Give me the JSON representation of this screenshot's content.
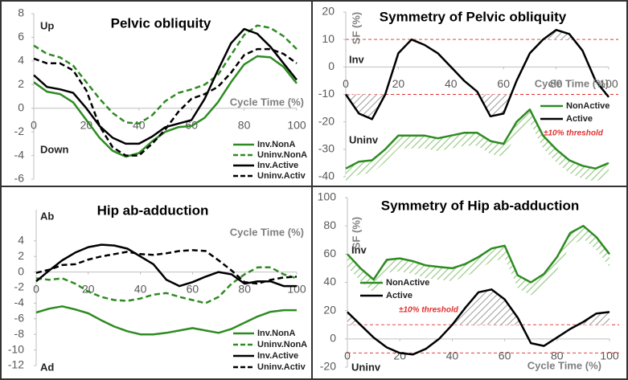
{
  "chart_data": [
    {
      "type": "line",
      "title": "Pelvic obliquity",
      "annotations": [
        "Up",
        "Down"
      ],
      "x_label": "Cycle Time (%)",
      "x": [
        0,
        5,
        10,
        15,
        20,
        25,
        30,
        35,
        40,
        45,
        50,
        55,
        60,
        65,
        70,
        75,
        80,
        85,
        90,
        95,
        100
      ],
      "xlim": [
        0,
        100
      ],
      "xticks": [
        0,
        20,
        40,
        60,
        80,
        100
      ],
      "ylim": [
        -6,
        8
      ],
      "yticks": [
        -6,
        -4,
        -2,
        0,
        2,
        4,
        6,
        8
      ],
      "series": [
        {
          "name": "Inv.NonA",
          "color": "#2e8b22",
          "dash": false,
          "values": [
            2.2,
            1.4,
            1.2,
            0.5,
            -1,
            -2.5,
            -3.6,
            -4.1,
            -3.8,
            -2.8,
            -2,
            -1.6,
            -1.5,
            -0.8,
            0.5,
            2.2,
            3.7,
            4.4,
            4.3,
            3.5,
            2.1
          ]
        },
        {
          "name": "Uninv.NonA",
          "color": "#2e8b22",
          "dash": true,
          "values": [
            5.3,
            4.6,
            4.3,
            3.6,
            2.2,
            0.8,
            -0.4,
            -1.2,
            -1.3,
            -0.6,
            0.6,
            1.3,
            1.6,
            2,
            2.8,
            4.5,
            6.2,
            7,
            6.8,
            6.1,
            5
          ]
        },
        {
          "name": "Inv.Active",
          "color": "#000000",
          "dash": false,
          "values": [
            2.8,
            1.8,
            1.6,
            1.3,
            0,
            -1.5,
            -2.5,
            -3,
            -3,
            -2.4,
            -1.6,
            -1.3,
            -1,
            0.8,
            3.2,
            5.5,
            6.7,
            6.3,
            5.2,
            3.8,
            2.4
          ]
        },
        {
          "name": "Uninv.Activ",
          "color": "#000000",
          "dash": true,
          "values": [
            4.2,
            3.8,
            3.8,
            3.2,
            1.5,
            -1.5,
            -3.3,
            -4,
            -4,
            -3,
            -1.8,
            -0.3,
            0.8,
            1.2,
            1.8,
            3,
            4.5,
            5,
            5,
            4.6,
            3.8
          ]
        }
      ]
    },
    {
      "type": "line",
      "title": "Symmetry of Pelvic obliquity",
      "annotations": [
        "Inv",
        "Uninv"
      ],
      "x_label": "Cycle Time (%)",
      "y_label": "SF (%)",
      "x": [
        0,
        5,
        10,
        15,
        20,
        25,
        30,
        35,
        40,
        45,
        50,
        55,
        60,
        65,
        70,
        75,
        80,
        85,
        90,
        95,
        100
      ],
      "xlim": [
        0,
        100
      ],
      "xticks": [
        0,
        20,
        40,
        60,
        80,
        100
      ],
      "ylim": [
        -40,
        20
      ],
      "yticks": [
        -40,
        -30,
        -20,
        -10,
        0,
        10,
        20
      ],
      "threshold": [
        10,
        -10
      ],
      "threshold_label": "±10% threshold",
      "threshold_color": "#e03030",
      "series": [
        {
          "name": "NonActive",
          "color": "#2e8b22",
          "dash": false,
          "hatch": "below",
          "values": [
            -37,
            -34.5,
            -34,
            -30,
            -25,
            -25,
            -25,
            -26,
            -25,
            -24,
            -24,
            -27,
            -28,
            -20,
            -15.5,
            -25,
            -30,
            -34,
            -36,
            -37,
            -35
          ]
        },
        {
          "name": "Active",
          "color": "#000000",
          "dash": false,
          "hatch": "outside-threshold",
          "values": [
            -10,
            -17,
            -19,
            -10,
            5,
            10,
            8,
            5,
            0,
            -5,
            -9,
            -18,
            -17,
            -5,
            5,
            10,
            13.5,
            12,
            6,
            -5,
            -11
          ]
        }
      ]
    },
    {
      "type": "line",
      "title": "Hip ab-adduction",
      "annotations": [
        "Ab",
        "Ad"
      ],
      "x_label": "Cycle Time (%)",
      "x": [
        0,
        5,
        10,
        15,
        20,
        25,
        30,
        35,
        40,
        45,
        50,
        55,
        60,
        65,
        70,
        75,
        80,
        85,
        90,
        95,
        100
      ],
      "xlim": [
        0,
        100
      ],
      "xticks": [
        0,
        20,
        40,
        60,
        80,
        100
      ],
      "ylim": [
        -12,
        8
      ],
      "yticks": [
        -12,
        -10,
        -8,
        -6,
        -4,
        -2,
        0,
        2,
        4
      ],
      "series": [
        {
          "name": "Inv.NonA",
          "color": "#2e8b22",
          "dash": false,
          "values": [
            -5.2,
            -4.7,
            -4.4,
            -4.8,
            -5.3,
            -6.2,
            -7,
            -7.6,
            -8,
            -8,
            -7.8,
            -7.5,
            -7.2,
            -7.5,
            -7.8,
            -7.3,
            -6.5,
            -5.7,
            -5.1,
            -4.9,
            -4.9
          ]
        },
        {
          "name": "Uninv.NonA",
          "color": "#2e8b22",
          "dash": true,
          "values": [
            -0.8,
            -1,
            -0.8,
            -1.5,
            -2.5,
            -3.2,
            -3.6,
            -3.7,
            -3.4,
            -2.9,
            -2.7,
            -3.2,
            -3.6,
            -4,
            -3.2,
            -1.5,
            -0.3,
            0.6,
            0.6,
            -0.3,
            -0.8
          ]
        },
        {
          "name": "Inv.Active",
          "color": "#000000",
          "dash": false,
          "values": [
            -1.2,
            0.2,
            1.5,
            2.5,
            3.2,
            3.5,
            3.4,
            3,
            2,
            1,
            -1,
            -1.8,
            -1.3,
            -0.6,
            0,
            -0.3,
            -1.5,
            -1.2,
            -1.2,
            -1.8,
            -1.8
          ]
        },
        {
          "name": "Uninv.Activ",
          "color": "#000000",
          "dash": true,
          "values": [
            -0.1,
            0.3,
            0.9,
            1,
            1.6,
            2,
            2.3,
            2.6,
            2.3,
            2.2,
            2.4,
            2.7,
            2.8,
            2.7,
            1.5,
            0.2,
            -1.3,
            -1.5,
            -1,
            -0.7,
            -0.6
          ]
        }
      ]
    },
    {
      "type": "line",
      "title": "Symmetry of Hip ab-adduction",
      "annotations": [
        "Inv",
        "Uninv"
      ],
      "x_label": "Cycle Time (%)",
      "y_label": "SF (%)",
      "x": [
        0,
        5,
        10,
        15,
        20,
        25,
        30,
        35,
        40,
        45,
        50,
        55,
        60,
        65,
        70,
        75,
        80,
        85,
        90,
        95,
        100
      ],
      "xlim": [
        0,
        100
      ],
      "xticks": [
        0,
        20,
        40,
        60,
        80,
        100
      ],
      "ylim": [
        -20,
        100
      ],
      "yticks": [
        -20,
        0,
        20,
        40,
        60,
        80,
        100
      ],
      "threshold": [
        10,
        -10
      ],
      "threshold_label": "±10% threshold",
      "threshold_color": "#e03030",
      "series": [
        {
          "name": "NonActive",
          "color": "#2e8b22",
          "dash": false,
          "hatch": "below",
          "values": [
            60,
            50,
            42,
            56,
            57,
            55,
            52,
            51,
            50,
            53,
            58,
            64,
            66,
            45,
            40,
            46,
            58,
            75,
            80,
            72,
            60
          ]
        },
        {
          "name": "Active",
          "color": "#000000",
          "dash": false,
          "hatch": "outside-threshold",
          "values": [
            19,
            10,
            1,
            -6,
            -10,
            -11,
            -7,
            0,
            10,
            22,
            33,
            35,
            28,
            15,
            -3,
            -5,
            1,
            7,
            12,
            18,
            19
          ]
        }
      ]
    }
  ]
}
